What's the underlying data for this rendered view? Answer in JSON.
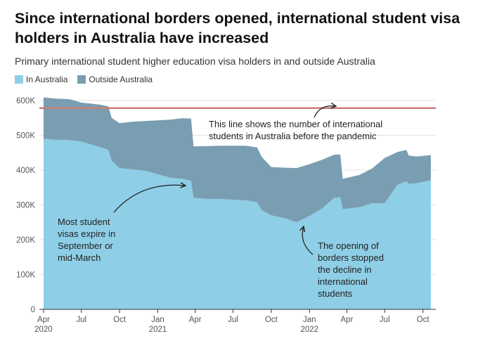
{
  "title": "Since international borders opened, international student visa holders in Australia have increased",
  "subtitle": "Primary international student higher education visa holders in and outside Australia",
  "colors": {
    "in": "#8ecfe7",
    "outside": "#7a9eb1",
    "reference": "#c97f7a"
  },
  "chart_data": {
    "type": "area",
    "stacked": true,
    "series": [
      {
        "name": "In Australia",
        "color": "#8ecfe7",
        "points": [
          [
            "2020-04-01",
            490000
          ],
          [
            "2020-05-01",
            487000
          ],
          [
            "2020-06-01",
            486000
          ],
          [
            "2020-07-01",
            482000
          ],
          [
            "2020-08-15",
            466000
          ],
          [
            "2020-09-04",
            458000
          ],
          [
            "2020-09-12",
            426000
          ],
          [
            "2020-10-01",
            406000
          ],
          [
            "2020-11-01",
            402000
          ],
          [
            "2020-12-01",
            398000
          ],
          [
            "2021-01-01",
            388000
          ],
          [
            "2021-02-01",
            378000
          ],
          [
            "2021-03-01",
            375000
          ],
          [
            "2021-03-22",
            369000
          ],
          [
            "2021-03-28",
            320000
          ],
          [
            "2021-05-01",
            317000
          ],
          [
            "2021-06-01",
            317000
          ],
          [
            "2021-07-01",
            315000
          ],
          [
            "2021-08-01",
            313000
          ],
          [
            "2021-08-28",
            308000
          ],
          [
            "2021-09-08",
            285000
          ],
          [
            "2021-10-01",
            270000
          ],
          [
            "2021-11-01",
            262000
          ],
          [
            "2021-12-01",
            250000
          ],
          [
            "2022-01-01",
            268000
          ],
          [
            "2022-02-01",
            290000
          ],
          [
            "2022-03-01",
            320000
          ],
          [
            "2022-03-16",
            322000
          ],
          [
            "2022-03-22",
            288000
          ],
          [
            "2022-05-01",
            293000
          ],
          [
            "2022-06-01",
            305000
          ],
          [
            "2022-07-01",
            305000
          ],
          [
            "2022-08-01",
            358000
          ],
          [
            "2022-08-22",
            368000
          ],
          [
            "2022-08-28",
            360000
          ],
          [
            "2022-09-15",
            362000
          ],
          [
            "2022-10-20",
            371000
          ]
        ]
      },
      {
        "name": "Outside Australia",
        "color": "#7a9eb1",
        "points": [
          [
            "2020-04-01",
            119000
          ],
          [
            "2020-05-01",
            118000
          ],
          [
            "2020-06-01",
            118000
          ],
          [
            "2020-07-01",
            112000
          ],
          [
            "2020-08-15",
            122000
          ],
          [
            "2020-09-04",
            125000
          ],
          [
            "2020-09-12",
            124000
          ],
          [
            "2020-10-01",
            129000
          ],
          [
            "2020-11-01",
            137000
          ],
          [
            "2020-12-01",
            143000
          ],
          [
            "2021-01-01",
            155000
          ],
          [
            "2021-02-01",
            167000
          ],
          [
            "2021-03-01",
            174000
          ],
          [
            "2021-03-22",
            179000
          ],
          [
            "2021-03-28",
            148000
          ],
          [
            "2021-05-01",
            152000
          ],
          [
            "2021-06-01",
            153000
          ],
          [
            "2021-07-01",
            155000
          ],
          [
            "2021-08-01",
            157000
          ],
          [
            "2021-08-28",
            157000
          ],
          [
            "2021-09-08",
            153000
          ],
          [
            "2021-10-01",
            139000
          ],
          [
            "2021-11-01",
            145000
          ],
          [
            "2021-12-01",
            156000
          ],
          [
            "2022-01-01",
            149000
          ],
          [
            "2022-02-01",
            140000
          ],
          [
            "2022-03-01",
            124000
          ],
          [
            "2022-03-16",
            123000
          ],
          [
            "2022-03-22",
            87000
          ],
          [
            "2022-05-01",
            93000
          ],
          [
            "2022-06-01",
            100000
          ],
          [
            "2022-07-01",
            130000
          ],
          [
            "2022-08-01",
            94000
          ],
          [
            "2022-08-22",
            90000
          ],
          [
            "2022-08-28",
            82000
          ],
          [
            "2022-09-15",
            77000
          ],
          [
            "2022-10-20",
            72000
          ]
        ]
      }
    ],
    "reference_line": {
      "value": 578000
    },
    "ylim": [
      0,
      620000
    ],
    "yticks": [
      0,
      100000,
      200000,
      300000,
      400000,
      500000,
      600000
    ],
    "ytick_labels": [
      "0",
      "100K",
      "200K",
      "300K",
      "400K",
      "500K",
      "600K"
    ],
    "xlim": [
      "2020-03-22",
      "2022-11-01"
    ],
    "xticks": [
      {
        "date": "2020-04-01",
        "label": "Apr",
        "year": "2020"
      },
      {
        "date": "2020-07-01",
        "label": "Jul",
        "year": ""
      },
      {
        "date": "2020-10-01",
        "label": "Oct",
        "year": ""
      },
      {
        "date": "2021-01-01",
        "label": "Jan",
        "year": "2021"
      },
      {
        "date": "2021-04-01",
        "label": "Apr",
        "year": ""
      },
      {
        "date": "2021-07-01",
        "label": "Jul",
        "year": ""
      },
      {
        "date": "2021-10-01",
        "label": "Oct",
        "year": ""
      },
      {
        "date": "2022-01-01",
        "label": "Jan",
        "year": "2022"
      },
      {
        "date": "2022-04-01",
        "label": "Apr",
        "year": ""
      },
      {
        "date": "2022-07-01",
        "label": "Jul",
        "year": ""
      },
      {
        "date": "2022-10-01",
        "label": "Oct",
        "year": ""
      }
    ],
    "grid": true,
    "legend": "top-left",
    "annotations": [
      {
        "id": "reference-note",
        "lines": [
          "This line shows the number of international",
          "students in Australia before the pandemic"
        ]
      },
      {
        "id": "expire-note",
        "lines": [
          "Most student",
          "visas expire in",
          "September or",
          "mid-March"
        ]
      },
      {
        "id": "borders-note",
        "lines": [
          "The opening of",
          "borders stopped",
          "the decline in",
          "international",
          "students"
        ]
      }
    ]
  }
}
